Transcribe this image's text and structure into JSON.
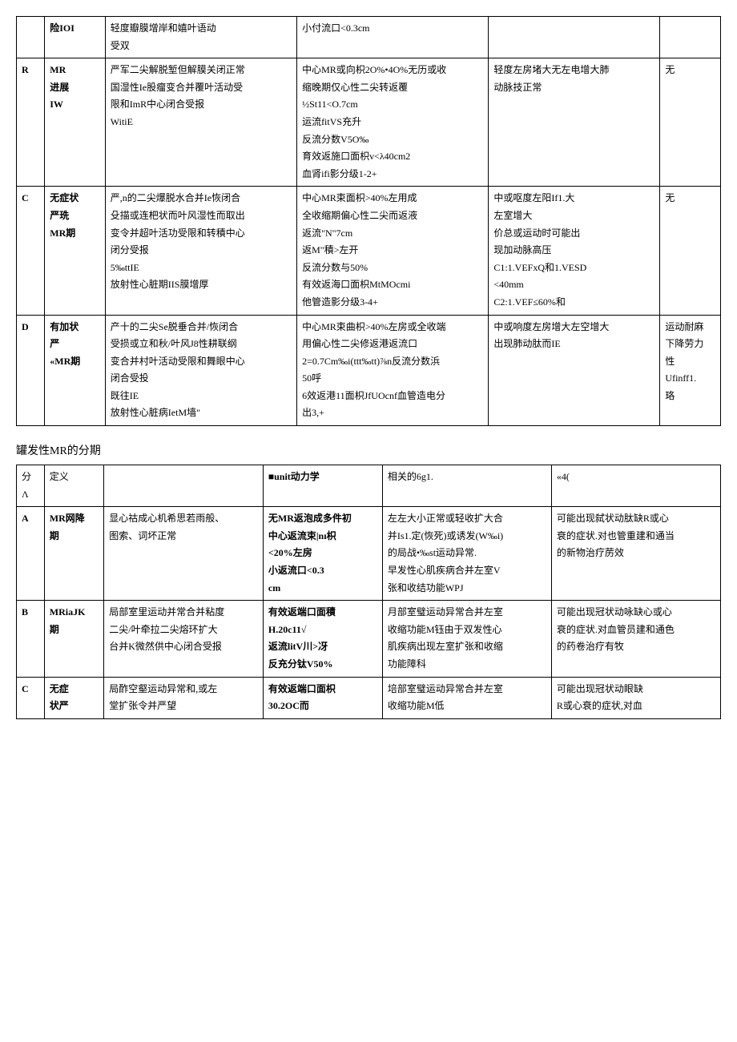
{
  "table1": {
    "rows": [
      {
        "stage": "",
        "def": "险IOI",
        "anat": "轻度瓣膜增岸和嬉叶语动\n受双",
        "hemo": "小付流口<0.3cm",
        "conseq": "",
        "symp": ""
      },
      {
        "stage": "R",
        "def": "MR\n进展\nIW",
        "anat": "严军二尖解脱堑但解膜关闭正常\n国湿性Ie股瘤变合并覆叶活动受\n限和ImR中心闭合受报\nWitiE",
        "hemo": "中心MR或向枳2O%•4O%无历或收\n缩晚期仅心性二尖转返覆\n½St11<O.7cm\n运流fitVS充升\n反流分数V5O‰\n育效返施口面枳v<λ40cm2\n血肾ifi影分级1-2+",
        "conseq": "轻度左房堵大无左电增大肺\n动脉技正常",
        "symp": "无"
      },
      {
        "stage": "C",
        "def": "无症状\n严珗\nMR期",
        "anat": "严,n的二尖爆脱水合并Ie恢闭合\n殳描或连杷状而叶风湿性而取出\n变令并超叶活功受限和转積中心\n闭分受报\n5‰ttIE\n放射性心脏期IIS膜增厚",
        "hemo": "中心MR束面枳>40%左用成\n全收缩期偏心性二尖而返液\n返流\"N\"7cm\n返M\"積>左开\n反流分数与50%\n有效返海口面枳MtMOcmi\n他管造影分级3-4+",
        "conseq": "中或呕度左阳If1.大\n左室增大\n价总或运动时可能出\n现加动脉高压\nC1:1.VEFxQ和1.VESD\n<40mm\nC2:1.VEF≤60%和",
        "symp": "无"
      },
      {
        "stage": "D",
        "def": "有加状\n严\n«MR期",
        "anat": "产十的二尖Se脱垂合并/恢闭合\n受损或立和秋/叶风J8性耕联纲\n变合并村叶活动受限和舞眼中心\n闭合受投\n既往IE\n放射性心脏病IetM墙\"",
        "hemo": "中心MR束曲枳>40%左房或全收端\n用偏心性二尖修返港返流口\n2=0.7Cm‰i(ttt‰tt)⅞n反流分数浜\n50呼\n6效返港11面枳JfUOcnf血管造电分\n出3,+",
        "conseq": "中或响度左房增大左空增大\n出现肺动肽而IE",
        "symp": "运动耐麻\n下降劳力\n性\nUfinff1.\n珞"
      }
    ]
  },
  "section_title": "罐发性MR的分期",
  "table2": {
    "header": {
      "stage": "分\nΛ",
      "def": "定义",
      "anat": "",
      "hemo": "■unit动力学",
      "conseq": "相关的6g1.",
      "symp": "«4("
    },
    "rows": [
      {
        "stage": "A",
        "def": "MR网降\n期",
        "anat": "显心祜成心机希思若雨般、\n图索、词坏正常",
        "hemo": "无MR返泡成多件初\n中心返流束|nɪ枳\n<20%左房\n小返流口<0.3\ncm",
        "conseq": "左左大小正常或轻收扩大合\n并Is1.定(恢死)或诱发(W‰i)\n的局战•‰st运动异常.\n早发性心肌疾病合并左室V\n张和收结功能WPJ",
        "symp": "可能出现弑状动肽缺R或心\n衰的症状.对也管重建和通当\n的新物治疗苈效"
      },
      {
        "stage": "B",
        "def": "MRiaJK\n期",
        "anat": "局部室里运动并常合并粘度\n二尖/叶牵拉二尖熔环扩大\n台并K微然供中心闭合受报",
        "hemo": "有效返端口面積\nH.20c11√\n返流litV川>冴\n反充分钛V50%",
        "conseq": "月部室璧运动异常合并左室\n收缩功能M钰由于双发性心\n肌疾病出现左室扩张和收缩\n功能障科",
        "symp": "可能出现冠状动咏缺心或心\n衰的症状.对血管员建和通色\n的药卷治疗有牧"
      },
      {
        "stage": "C",
        "def": "无症\n状严",
        "anat": "局酢空壑运动异常和,或左\n堂扩张令并严望",
        "hemo": "有效返端口面枳\n30.2OC而",
        "conseq": "培部室璧运动异常合并左室\n收缩功能M低",
        "symp": "可能出现冠状动眼缺\nR或心衰的症状,对血"
      }
    ]
  },
  "colors": {
    "text": "#000000",
    "border": "#000000",
    "background": "#ffffff"
  },
  "fonts": {
    "body_size": 12,
    "title_size": 14,
    "family": "SimSun"
  }
}
